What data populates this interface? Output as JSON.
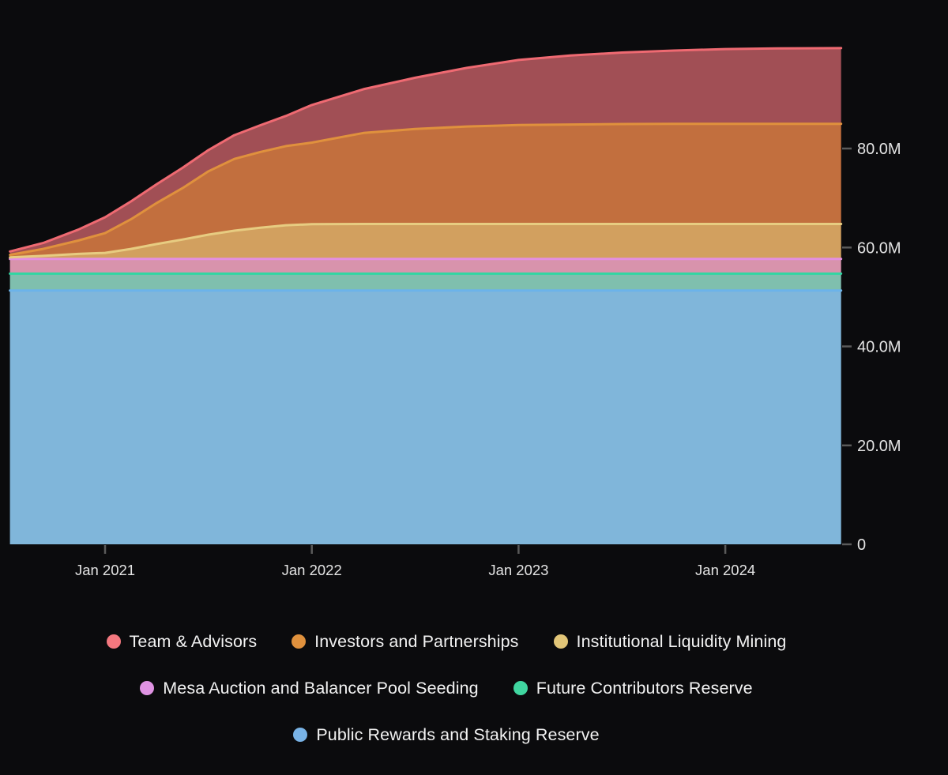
{
  "colors": {
    "background": "#0b0b0d",
    "tick_mark": "#5a5a5a",
    "axis_label_text": "#e4e4e4",
    "legend_text": "#f2f2f2"
  },
  "chart_data": {
    "type": "area",
    "stacked": true,
    "title": "",
    "xlabel": "",
    "ylabel": "",
    "x_unit": "time (fractional years)",
    "x": [
      2020.54,
      2020.7,
      2020.87,
      2021.0,
      2021.125,
      2021.25,
      2021.375,
      2021.5,
      2021.625,
      2021.75,
      2021.875,
      2022.0,
      2022.25,
      2022.5,
      2022.75,
      2023.0,
      2023.25,
      2023.5,
      2023.75,
      2024.0,
      2024.25,
      2024.56
    ],
    "x_tick_labels": [
      "Jan 2021",
      "Jan 2022",
      "Jan 2023",
      "Jan 2024"
    ],
    "x_tick_values": [
      2021,
      2022,
      2023,
      2024
    ],
    "y_tick_labels": [
      "0",
      "20.0M",
      "40.0M",
      "60.0M",
      "80.0M"
    ],
    "y_tick_values": [
      0,
      20,
      40,
      60,
      80
    ],
    "ylim": [
      0,
      100.3
    ],
    "y_axis_side": "right",
    "grid": false,
    "total_at_end": "100.3M",
    "series": [
      {
        "name": "Public Rewards and Staking Reserve",
        "fill": "#80b6da",
        "stroke": "#6cb3ea",
        "dot": "#79b3e6",
        "values": [
          51.3,
          51.3,
          51.3,
          51.3,
          51.3,
          51.3,
          51.3,
          51.3,
          51.3,
          51.3,
          51.3,
          51.3,
          51.3,
          51.3,
          51.3,
          51.3,
          51.3,
          51.3,
          51.3,
          51.3,
          51.3,
          51.3
        ]
      },
      {
        "name": "Future Contributors Reserve",
        "fill": "#7fbfae",
        "stroke": "#30d6a2",
        "dot": "#40d6a0",
        "values": [
          3.4,
          3.4,
          3.4,
          3.4,
          3.4,
          3.4,
          3.4,
          3.4,
          3.4,
          3.4,
          3.4,
          3.4,
          3.4,
          3.4,
          3.4,
          3.4,
          3.4,
          3.4,
          3.4,
          3.4,
          3.4,
          3.4
        ]
      },
      {
        "name": "Mesa Auction and Balancer Pool Seeding",
        "fill": "#d893ac",
        "stroke": "#e48fe0",
        "dot": "#df93e2",
        "values": [
          3.0,
          3.0,
          3.0,
          3.0,
          3.0,
          3.0,
          3.0,
          3.0,
          3.0,
          3.0,
          3.0,
          3.0,
          3.0,
          3.0,
          3.0,
          3.0,
          3.0,
          3.0,
          3.0,
          3.0,
          3.0,
          3.0
        ]
      },
      {
        "name": "Institutional Liquidity Mining",
        "fill": "#d2a05f",
        "stroke": "#e7cc81",
        "dot": "#e2c678",
        "values": [
          0.3,
          0.6,
          1.0,
          1.2,
          2.0,
          3.0,
          3.9,
          4.9,
          5.7,
          6.3,
          6.8,
          7.0,
          7.05,
          7.05,
          7.05,
          7.05,
          7.05,
          7.05,
          7.05,
          7.05,
          7.05,
          7.05
        ]
      },
      {
        "name": "Investors and Partnerships",
        "fill": "#c26f3e",
        "stroke": "#e0913d",
        "dot": "#e0913d",
        "values": [
          0.5,
          1.4,
          2.7,
          4.0,
          6.0,
          8.3,
          10.4,
          12.8,
          14.5,
          15.3,
          16.0,
          16.5,
          18.4,
          19.2,
          19.7,
          20.0,
          20.1,
          20.2,
          20.25,
          20.25,
          20.25,
          20.25
        ]
      },
      {
        "name": "Team & Advisors",
        "fill": "#a14f55",
        "stroke": "#ef6a72",
        "dot": "#f4787f",
        "values": [
          0.7,
          1.2,
          2.2,
          3.2,
          3.6,
          3.8,
          4.1,
          4.3,
          4.8,
          5.4,
          6.1,
          7.6,
          8.85,
          10.35,
          11.85,
          13.15,
          13.95,
          14.45,
          14.8,
          15.1,
          15.25,
          15.3
        ]
      }
    ],
    "legend": {
      "position": "bottom",
      "rows": [
        [
          "Team & Advisors",
          "Investors and Partnerships",
          "Institutional Liquidity Mining"
        ],
        [
          "Mesa Auction and Balancer Pool Seeding",
          "Future Contributors Reserve"
        ],
        [
          "Public Rewards and Staking Reserve"
        ]
      ]
    }
  }
}
